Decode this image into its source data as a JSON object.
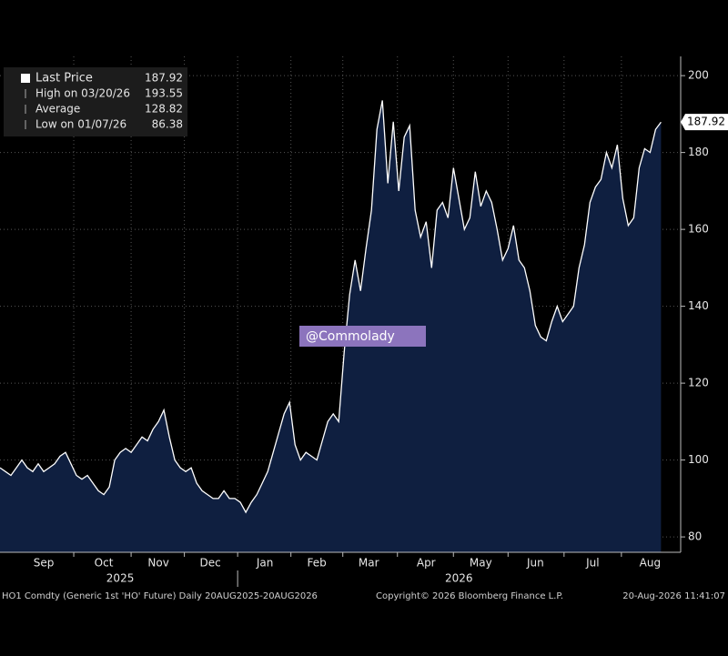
{
  "chart_data": {
    "type": "area",
    "values": [
      98,
      97,
      96,
      98,
      100,
      98,
      97,
      99,
      97,
      98,
      99,
      101,
      102,
      99,
      96,
      95,
      96,
      94,
      92,
      91,
      93,
      100,
      102,
      103,
      102,
      104,
      106,
      105,
      108,
      110,
      113,
      106,
      100,
      98,
      97,
      98,
      94,
      92,
      91,
      90,
      90,
      92,
      90,
      90,
      89,
      86.38,
      89,
      91,
      94,
      97,
      102,
      107,
      112,
      115,
      104,
      100,
      102,
      101,
      100,
      105,
      110,
      112,
      110,
      128,
      143,
      152,
      144,
      155,
      165,
      186,
      193.55,
      172,
      188,
      170,
      184,
      187,
      165,
      158,
      162,
      150,
      165,
      167,
      163,
      176,
      168,
      160,
      163,
      175,
      166,
      170,
      167,
      160,
      152,
      155,
      161,
      152,
      150,
      144,
      135,
      132,
      131,
      136,
      140,
      136,
      138,
      140,
      150,
      156,
      167,
      171,
      173,
      180,
      176,
      182,
      168,
      161,
      163,
      176,
      181,
      180,
      186,
      187.92
    ],
    "color": "#0f1f40",
    "line_color": "#ffffff",
    "xlim": [
      0,
      124.6
    ],
    "xticks": [
      {
        "value": 8,
        "label": "Sep"
      },
      {
        "value": 19,
        "label": "Oct"
      },
      {
        "value": 29,
        "label": "Nov"
      },
      {
        "value": 38.5,
        "label": "Dec"
      },
      {
        "value": 48.5,
        "label": "Jan"
      },
      {
        "value": 58,
        "label": "Feb"
      },
      {
        "value": 67.5,
        "label": "Mar"
      },
      {
        "value": 78,
        "label": "Apr"
      },
      {
        "value": 88,
        "label": "May"
      },
      {
        "value": 98,
        "label": "Jun"
      },
      {
        "value": 108.5,
        "label": "Jul"
      },
      {
        "value": 119,
        "label": "Aug"
      }
    ],
    "year_labels": [
      {
        "value": 22,
        "label": "2025"
      },
      {
        "value": 84,
        "label": "2026"
      }
    ],
    "ylim": [
      76,
      205
    ],
    "yticks": [
      80,
      100,
      120,
      140,
      160,
      180,
      200
    ],
    "grid": true,
    "legend": [
      {
        "label": "Last Price",
        "value": "187.92"
      },
      {
        "label": "High on 03/20/26",
        "value": "193.55"
      },
      {
        "label": "Average",
        "value": "128.82"
      },
      {
        "label": "Low on 01/07/26",
        "value": "86.38"
      }
    ],
    "watermark": "@Commolady",
    "footer": {
      "left": "HO1 Comdty (Generic 1st 'HO' Future) Daily 20AUG2025-20AUG2026",
      "center": "Copyright© 2026 Bloomberg Finance L.P.",
      "right": "20-Aug-2026 11:41:07"
    }
  }
}
